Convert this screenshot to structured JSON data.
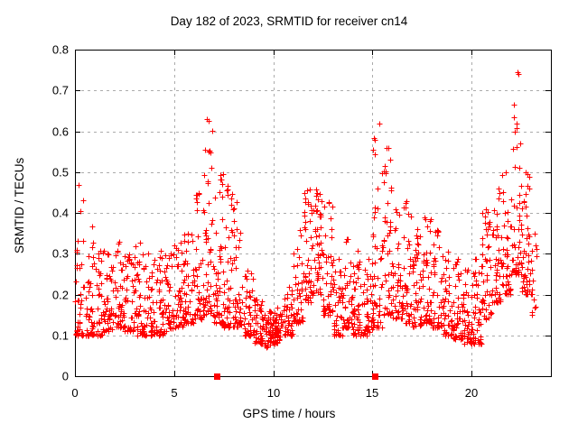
{
  "page": {
    "background": "#ffffff"
  },
  "chart_data": {
    "type": "scatter",
    "title": "Day 182 of 2023, SRMTID for receiver cn14",
    "xlabel": "GPS time / hours",
    "ylabel": "SRMTID / TECUs",
    "xlim": [
      0,
      24
    ],
    "ylim": [
      0,
      0.8
    ],
    "xticks": [
      0,
      5,
      10,
      15,
      20
    ],
    "xtick_labels": [
      "0",
      "5",
      "10",
      "15",
      "20"
    ],
    "yticks": [
      0,
      0.1,
      0.2,
      0.3,
      0.4,
      0.5,
      0.6,
      0.7,
      0.8
    ],
    "ytick_labels": [
      "0",
      "0.1",
      "0.2",
      "0.3",
      "0.4",
      "0.5",
      "0.6",
      "0.7",
      "0.8"
    ],
    "grid": true,
    "grid_style": "dashed",
    "legend": "none",
    "marker": "plus",
    "marker_size": 7,
    "marker_color": "#ff0000",
    "grid_color": "#ababab",
    "axis_color": "#000000",
    "text_color": "#000000",
    "seed": 1337,
    "scatter_envelope": {
      "description": "Dense scatter of ~2000 red plus markers. Envelope read from plot as half-hour bins; bin fields are [t_start_hours, value_min_TECU, value_max_TECU, point_count, low_bias_exponent, optional_bin_width]. Peaks near hours 6.5-7.5 (to 0.63), 11.5-12.5 (to 0.46), 15.0-16.0 (to 0.62), 22.0-22.7 (to 0.75); dips near hours 9-10.5 (0.07-0.17) and 19.5-20.5.",
      "bin_fields": [
        "t",
        "lo",
        "hi",
        "n",
        "k",
        "bw"
      ],
      "bin_width": 0.5,
      "bins": [
        [
          0.0,
          0.1,
          0.47,
          42,
          2.6
        ],
        [
          0.5,
          0.1,
          0.37,
          42,
          2.0
        ],
        [
          1.0,
          0.1,
          0.31,
          40,
          1.8
        ],
        [
          1.5,
          0.11,
          0.3,
          40,
          1.8
        ],
        [
          2.0,
          0.12,
          0.33,
          40,
          1.8
        ],
        [
          2.5,
          0.11,
          0.3,
          44,
          1.8
        ],
        [
          3.0,
          0.1,
          0.33,
          44,
          1.8
        ],
        [
          3.5,
          0.1,
          0.3,
          40,
          1.8
        ],
        [
          4.0,
          0.1,
          0.31,
          40,
          1.8
        ],
        [
          4.5,
          0.11,
          0.3,
          40,
          1.8
        ],
        [
          5.0,
          0.12,
          0.33,
          44,
          1.8
        ],
        [
          5.5,
          0.13,
          0.35,
          44,
          1.8
        ],
        [
          6.0,
          0.14,
          0.45,
          44,
          2.0
        ],
        [
          6.5,
          0.15,
          0.63,
          50,
          2.4
        ],
        [
          7.0,
          0.13,
          0.5,
          50,
          2.0
        ],
        [
          7.5,
          0.12,
          0.47,
          46,
          2.0
        ],
        [
          8.0,
          0.12,
          0.43,
          40,
          2.0
        ],
        [
          8.5,
          0.1,
          0.26,
          44,
          1.5
        ],
        [
          9.0,
          0.08,
          0.19,
          46,
          1.3
        ],
        [
          9.5,
          0.07,
          0.16,
          46,
          1.3
        ],
        [
          10.0,
          0.08,
          0.17,
          46,
          1.3
        ],
        [
          10.5,
          0.1,
          0.22,
          44,
          1.5
        ],
        [
          11.0,
          0.13,
          0.36,
          44,
          1.8
        ],
        [
          11.5,
          0.18,
          0.46,
          48,
          1.6
        ],
        [
          12.0,
          0.2,
          0.46,
          48,
          1.6
        ],
        [
          12.5,
          0.15,
          0.43,
          44,
          1.8
        ],
        [
          13.0,
          0.1,
          0.29,
          40,
          1.6
        ],
        [
          13.5,
          0.12,
          0.34,
          40,
          1.8
        ],
        [
          14.0,
          0.1,
          0.31,
          44,
          1.8
        ],
        [
          14.5,
          0.1,
          0.29,
          44,
          1.8
        ],
        [
          15.0,
          0.12,
          0.62,
          48,
          2.4
        ],
        [
          15.5,
          0.15,
          0.56,
          44,
          2.2
        ],
        [
          16.0,
          0.14,
          0.41,
          40,
          1.9
        ],
        [
          16.5,
          0.13,
          0.43,
          40,
          1.9
        ],
        [
          17.0,
          0.12,
          0.36,
          44,
          1.8
        ],
        [
          17.5,
          0.13,
          0.39,
          44,
          1.8
        ],
        [
          18.0,
          0.12,
          0.36,
          40,
          1.8
        ],
        [
          18.5,
          0.1,
          0.31,
          40,
          1.8
        ],
        [
          19.0,
          0.09,
          0.29,
          44,
          1.8
        ],
        [
          19.5,
          0.08,
          0.26,
          44,
          1.7
        ],
        [
          20.0,
          0.08,
          0.29,
          44,
          1.8
        ],
        [
          20.5,
          0.14,
          0.41,
          44,
          1.9
        ],
        [
          21.0,
          0.18,
          0.46,
          44,
          1.9
        ],
        [
          21.5,
          0.2,
          0.5,
          44,
          1.9
        ],
        [
          22.0,
          0.25,
          0.75,
          50,
          2.2
        ],
        [
          22.5,
          0.2,
          0.5,
          48,
          1.9
        ],
        [
          23.0,
          0.15,
          0.35,
          14,
          1.7,
          0.3
        ]
      ]
    },
    "zero_markers": {
      "shape": "filled-square",
      "color": "#ff0000",
      "size": 7,
      "v": 0,
      "t": [
        7.15,
        15.15
      ]
    }
  }
}
